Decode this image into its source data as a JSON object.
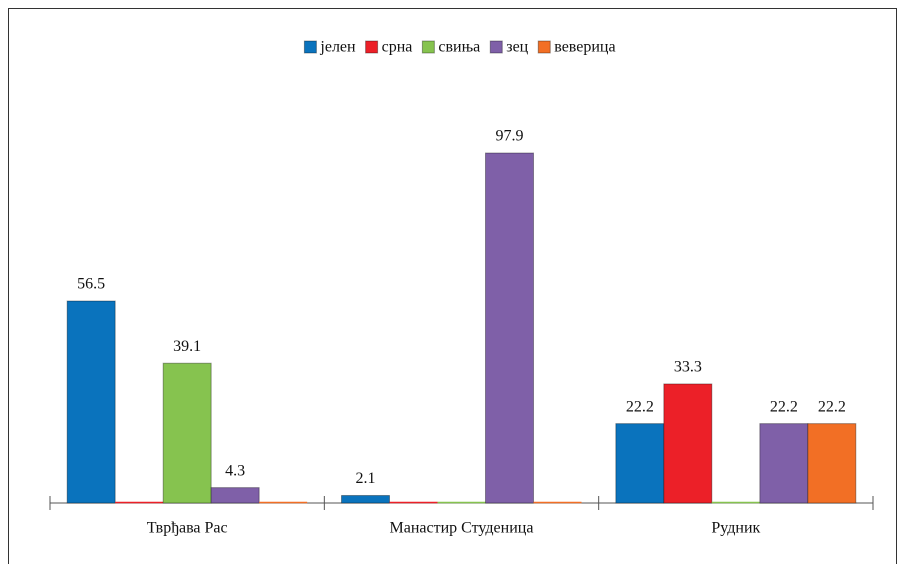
{
  "chart_data": {
    "type": "bar",
    "categories": [
      "Тврђава Рас",
      "Манастир Студеница",
      "Рудник"
    ],
    "series": [
      {
        "name": "јелен",
        "color": "#0a73bd",
        "values": [
          56.5,
          2.1,
          22.2
        ]
      },
      {
        "name": "срна",
        "color": "#ec2028",
        "values": [
          0,
          0,
          33.3
        ]
      },
      {
        "name": "свиња",
        "color": "#86c34f",
        "values": [
          39.1,
          0,
          0
        ]
      },
      {
        "name": "зец",
        "color": "#7f60a8",
        "values": [
          4.3,
          97.9,
          22.2
        ]
      },
      {
        "name": "веверица",
        "color": "#f26f25",
        "values": [
          0,
          0,
          22.2
        ]
      }
    ],
    "legend": "top"
  }
}
